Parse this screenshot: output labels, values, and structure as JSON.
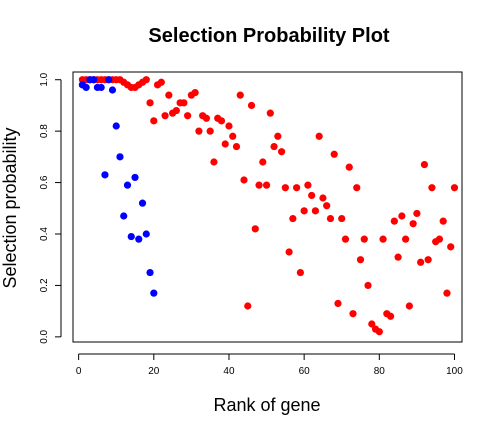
{
  "chart_data": {
    "type": "scatter",
    "title": "Selection Probability Plot",
    "xlabel": "Rank of gene",
    "ylabel": "Selection probability",
    "xlim": [
      -1.5,
      102
    ],
    "ylim": [
      -0.02,
      1.03
    ],
    "xticks": [
      0,
      20,
      40,
      60,
      80,
      100
    ],
    "yticks": [
      0.0,
      0.2,
      0.4,
      0.6,
      0.8,
      1.0
    ],
    "xtick_labels": [
      "0",
      "20",
      "40",
      "60",
      "80",
      "100"
    ],
    "ytick_labels": [
      "0.0",
      "0.2",
      "0.4",
      "0.6",
      "0.8",
      "1.0"
    ],
    "grid": false,
    "series": [
      {
        "name": "red",
        "color": "#ff0000",
        "points": [
          [
            1,
            1.0
          ],
          [
            2,
            1.0
          ],
          [
            3,
            1.0
          ],
          [
            4,
            1.0
          ],
          [
            5,
            1.0
          ],
          [
            6,
            1.0
          ],
          [
            7,
            1.0
          ],
          [
            8,
            1.0
          ],
          [
            9,
            1.0
          ],
          [
            10,
            1.0
          ],
          [
            11,
            1.0
          ],
          [
            12,
            0.99
          ],
          [
            13,
            0.98
          ],
          [
            14,
            0.97
          ],
          [
            15,
            0.97
          ],
          [
            16,
            0.98
          ],
          [
            17,
            0.99
          ],
          [
            18,
            1.0
          ],
          [
            19,
            0.91
          ],
          [
            20,
            0.84
          ],
          [
            21,
            0.98
          ],
          [
            22,
            0.99
          ],
          [
            23,
            0.86
          ],
          [
            24,
            0.94
          ],
          [
            25,
            0.87
          ],
          [
            26,
            0.88
          ],
          [
            27,
            0.91
          ],
          [
            28,
            0.91
          ],
          [
            29,
            0.86
          ],
          [
            30,
            0.94
          ],
          [
            31,
            0.95
          ],
          [
            32,
            0.8
          ],
          [
            33,
            0.86
          ],
          [
            34,
            0.85
          ],
          [
            35,
            0.8
          ],
          [
            36,
            0.68
          ],
          [
            37,
            0.85
          ],
          [
            38,
            0.84
          ],
          [
            39,
            0.75
          ],
          [
            40,
            0.82
          ],
          [
            41,
            0.78
          ],
          [
            42,
            0.74
          ],
          [
            43,
            0.94
          ],
          [
            44,
            0.61
          ],
          [
            45,
            0.12
          ],
          [
            46,
            0.9
          ],
          [
            47,
            0.42
          ],
          [
            48,
            0.59
          ],
          [
            49,
            0.68
          ],
          [
            50,
            0.59
          ],
          [
            51,
            0.87
          ],
          [
            52,
            0.74
          ],
          [
            53,
            0.78
          ],
          [
            54,
            0.72
          ],
          [
            55,
            0.58
          ],
          [
            56,
            0.33
          ],
          [
            57,
            0.46
          ],
          [
            58,
            0.58
          ],
          [
            59,
            0.25
          ],
          [
            60,
            0.49
          ],
          [
            61,
            0.59
          ],
          [
            62,
            0.55
          ],
          [
            63,
            0.49
          ],
          [
            64,
            0.78
          ],
          [
            65,
            0.54
          ],
          [
            66,
            0.51
          ],
          [
            67,
            0.46
          ],
          [
            68,
            0.71
          ],
          [
            69,
            0.13
          ],
          [
            70,
            0.46
          ],
          [
            71,
            0.38
          ],
          [
            72,
            0.66
          ],
          [
            73,
            0.09
          ],
          [
            74,
            0.58
          ],
          [
            75,
            0.3
          ],
          [
            76,
            0.38
          ],
          [
            77,
            0.2
          ],
          [
            78,
            0.05
          ],
          [
            79,
            0.03
          ],
          [
            80,
            0.02
          ],
          [
            81,
            0.38
          ],
          [
            82,
            0.09
          ],
          [
            83,
            0.08
          ],
          [
            84,
            0.45
          ],
          [
            85,
            0.31
          ],
          [
            86,
            0.47
          ],
          [
            87,
            0.38
          ],
          [
            88,
            0.12
          ],
          [
            89,
            0.44
          ],
          [
            90,
            0.48
          ],
          [
            91,
            0.29
          ],
          [
            92,
            0.67
          ],
          [
            93,
            0.3
          ],
          [
            94,
            0.58
          ],
          [
            95,
            0.37
          ],
          [
            96,
            0.38
          ],
          [
            97,
            0.45
          ],
          [
            98,
            0.17
          ],
          [
            99,
            0.35
          ],
          [
            100,
            0.58
          ]
        ]
      },
      {
        "name": "blue",
        "color": "#0000ff",
        "points": [
          [
            1,
            0.98
          ],
          [
            2,
            0.97
          ],
          [
            3,
            1.0
          ],
          [
            4,
            1.0
          ],
          [
            5,
            0.97
          ],
          [
            6,
            0.97
          ],
          [
            7,
            0.63
          ],
          [
            8,
            1.0
          ],
          [
            9,
            0.96
          ],
          [
            10,
            0.82
          ],
          [
            11,
            0.7
          ],
          [
            12,
            0.47
          ],
          [
            13,
            0.59
          ],
          [
            14,
            0.39
          ],
          [
            15,
            0.62
          ],
          [
            16,
            0.38
          ],
          [
            17,
            0.52
          ],
          [
            18,
            0.4
          ],
          [
            19,
            0.25
          ],
          [
            20,
            0.17
          ]
        ]
      }
    ]
  }
}
